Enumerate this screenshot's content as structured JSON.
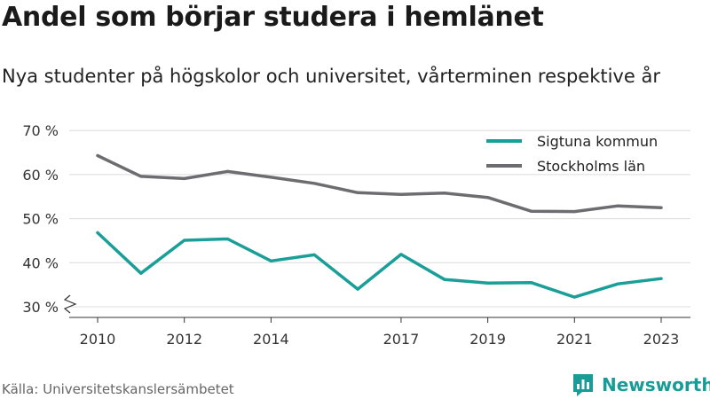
{
  "title": "Andel som börjar studera i hemlänet",
  "subtitle": "Nya studenter på högskolor och universitet, vårterminen respektive år",
  "source": "Källa: Universitetskanslersämbetet",
  "brand": {
    "name": "Newsworthy",
    "icon": "newsworthy-logo-icon",
    "color": "#199c96"
  },
  "chart_data": {
    "type": "line",
    "x": [
      2010,
      2011,
      2012,
      2013,
      2014,
      2015,
      2016,
      2017,
      2018,
      2019,
      2020,
      2021,
      2022,
      2023
    ],
    "series": [
      {
        "name": "Sigtuna kommun",
        "color": "#1a9e98",
        "values": [
          46.8,
          37.6,
          45.1,
          45.4,
          40.4,
          41.8,
          34.0,
          41.9,
          36.2,
          35.4,
          35.5,
          32.2,
          35.2,
          36.4
        ]
      },
      {
        "name": "Stockholms län",
        "color": "#6d6c70",
        "values": [
          64.3,
          59.6,
          59.1,
          60.7,
          59.4,
          58.0,
          55.9,
          55.5,
          55.8,
          54.8,
          51.7,
          51.6,
          52.9,
          52.5
        ]
      }
    ],
    "xticks": [
      2010,
      2012,
      2014,
      2017,
      2019,
      2021,
      2023
    ],
    "yticks": [
      30,
      40,
      50,
      60,
      70
    ],
    "ytick_labels": [
      "30 %",
      "40 %",
      "50 %",
      "60 %",
      "70 %"
    ],
    "ylim": [
      28,
      72
    ],
    "grid": true,
    "legend_position": "top-right",
    "axis_break": true
  }
}
